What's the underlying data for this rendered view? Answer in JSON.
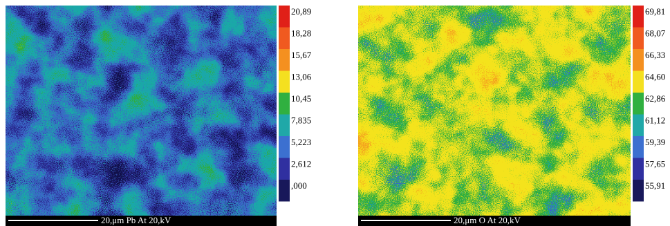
{
  "panels": [
    {
      "scale_labels": [
        "20,89",
        "18,28",
        "15,67",
        "13,06",
        "10,45",
        "7,835",
        "5,223",
        "2,612",
        ",000"
      ],
      "caption": "20,μm  Pb At  20,kV"
    },
    {
      "scale_labels": [
        "69,81",
        "68,07",
        "66,33",
        "64,60",
        "62,86",
        "61,12",
        "59,39",
        "57,65",
        "55,91"
      ],
      "caption": "20,μm  O  At  20,kV"
    }
  ]
}
